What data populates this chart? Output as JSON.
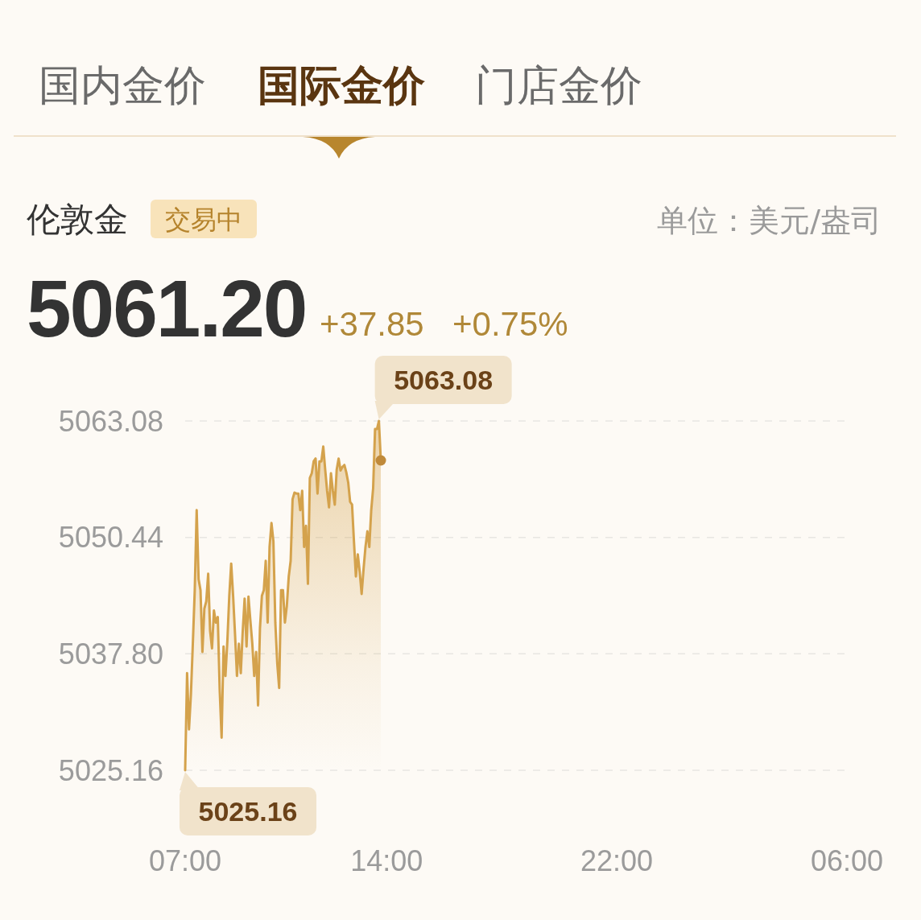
{
  "chart_data": {
    "type": "area",
    "title": "伦敦金",
    "annotations": [
      "国内金价",
      "国际金价",
      "门店金价",
      "交易中",
      "单位：美元/盎司",
      "5061.20",
      "+37.85",
      "+0.75%"
    ],
    "categories": [
      "07:00",
      null,
      null,
      null,
      null,
      null,
      null,
      null,
      null,
      null,
      null,
      null,
      null,
      null,
      null,
      null,
      null,
      null,
      null,
      null,
      null,
      null,
      null,
      null,
      null,
      null,
      null,
      null,
      null,
      null,
      null,
      null,
      null,
      null,
      null,
      null,
      null,
      null,
      null,
      null,
      null,
      null,
      null,
      null,
      null,
      null,
      null,
      null,
      null,
      null,
      null,
      null,
      null,
      null,
      null,
      null,
      null,
      null,
      null,
      null,
      null,
      null,
      null,
      null,
      null,
      null,
      null,
      null,
      null,
      null,
      null,
      null,
      null,
      null,
      null,
      null,
      null,
      null,
      null,
      null,
      null,
      null,
      null,
      null,
      null,
      null,
      null,
      null,
      null,
      null,
      null,
      null,
      null,
      null,
      null,
      null,
      null,
      null,
      null,
      null,
      null,
      null,
      null,
      null,
      null,
      "14:00",
      null,
      null,
      null,
      null,
      null,
      null,
      null,
      null,
      null,
      null,
      null,
      null,
      null,
      null,
      null,
      null,
      null,
      null,
      null,
      null,
      null,
      null,
      null,
      null,
      null,
      null,
      null,
      null,
      null,
      null,
      null,
      null,
      null,
      null,
      null,
      null,
      null,
      null,
      null,
      null,
      null,
      null,
      null,
      null,
      null,
      null,
      null,
      null,
      null,
      null,
      null,
      null,
      null,
      null,
      null,
      null,
      null,
      null,
      null,
      null,
      null,
      null,
      null,
      null,
      null,
      null,
      null,
      null,
      null,
      null,
      null,
      null,
      null,
      null,
      null,
      null,
      null,
      null,
      null,
      null,
      null,
      null,
      null,
      null,
      null,
      null,
      null,
      null,
      null,
      null,
      null,
      null,
      null,
      null,
      null,
      null,
      null,
      null,
      null,
      null,
      null,
      null,
      null,
      null,
      null,
      null,
      null,
      null,
      null,
      null,
      null,
      null,
      null,
      null,
      null,
      null,
      null,
      null,
      null,
      "22:00",
      null,
      null,
      null,
      null,
      null,
      null,
      null,
      null,
      null,
      null,
      null,
      null,
      null,
      null,
      null,
      null,
      null,
      null,
      null,
      null,
      null,
      null,
      null,
      null,
      null,
      null,
      null,
      null,
      null,
      null,
      null,
      null,
      null,
      null,
      null,
      null,
      null,
      null,
      null,
      null,
      null,
      null,
      null,
      null,
      null,
      null,
      null,
      null,
      null,
      null,
      null,
      null,
      null,
      null,
      null,
      null,
      null,
      null,
      null,
      null,
      null,
      null,
      null,
      null,
      null,
      null,
      null,
      null,
      null,
      null,
      null,
      null,
      null,
      null,
      null,
      null,
      null,
      null,
      null,
      null,
      null,
      null,
      null,
      null,
      null,
      null,
      null,
      null,
      null,
      null,
      null,
      null,
      null,
      null,
      null,
      null,
      null,
      null,
      null,
      null,
      null,
      null,
      null,
      null,
      null,
      null,
      null,
      null,
      null,
      null,
      null,
      null,
      null,
      null,
      null,
      null,
      null,
      null,
      null,
      "06:00"
    ],
    "series": [
      {
        "color": "#d4a24c",
        "values": [
          5025.16,
          5035.7,
          5029.6,
          5033.4,
          5038.9,
          5044.7,
          5053.4,
          5045.9,
          5044.7,
          5038.0,
          5042.7,
          5043.5,
          5046.5,
          5040.3,
          5038.4,
          5042.5,
          5041.2,
          5041.8,
          5033.9,
          5028.7,
          5038.6,
          5035.4,
          5039.2,
          5044.1,
          5047.6,
          5044.1,
          5039.9,
          5035.4,
          5038.9,
          5035.7,
          5040.2,
          5043.8,
          5038.6,
          5044.0,
          5041.4,
          5038.9,
          5035.4,
          5038.0,
          5032.2,
          5040.6,
          5044.1,
          5044.7,
          5047.9,
          5041.2,
          5049.4,
          5052.0,
          5050.0,
          5041.2,
          5036.8,
          5034.1,
          5044.7,
          5044.7,
          5041.2,
          5043.0,
          5046.2,
          5047.9,
          5054.6,
          5055.3,
          5055.2,
          5055.2,
          5053.4,
          5055.5,
          5049.4,
          5051.7,
          5045.4,
          5056.9,
          5057.4,
          5058.7,
          5059.0,
          5055.2,
          5058.7,
          5058.7,
          5060.3,
          5057.8,
          5055.5,
          5053.7,
          5057.4,
          5055.5,
          5054.0,
          5057.8,
          5059.0,
          5057.7,
          5058.1,
          5058.3,
          5057.5,
          5056.4,
          5054.3,
          5054.0,
          5050.0,
          5046.2,
          5048.6,
          5046.7,
          5044.3,
          5047.0,
          5049.4,
          5051.1,
          5049.4,
          5053.4,
          5055.8,
          5062.2,
          5062.2,
          5063.08,
          5058.8,
          null,
          null,
          null,
          null,
          null,
          null,
          null,
          null,
          null,
          null,
          null,
          null,
          null,
          null,
          null,
          null,
          null,
          null,
          null,
          null,
          null,
          null,
          null,
          null,
          null,
          null,
          null,
          null,
          null,
          null,
          null,
          null,
          null,
          null,
          null,
          null,
          null,
          null,
          null,
          null,
          null,
          null,
          null,
          null,
          null,
          null,
          null,
          null,
          null,
          null,
          null,
          null,
          null,
          null,
          null,
          null,
          null,
          null,
          null,
          null,
          null,
          null,
          null,
          null,
          null,
          null,
          null,
          null,
          null,
          null,
          null,
          null,
          null,
          null,
          null,
          null,
          null,
          null,
          null,
          null,
          null,
          null,
          null,
          null,
          null,
          null,
          null,
          null,
          null,
          null,
          null,
          null,
          null,
          null,
          null,
          null,
          null,
          null,
          null,
          null,
          null,
          null,
          null,
          null,
          null,
          null,
          null,
          null,
          null,
          null,
          null,
          null,
          null,
          null,
          null,
          null,
          null,
          null,
          null,
          null,
          null,
          null,
          null,
          null,
          null,
          null,
          null,
          null,
          null,
          null,
          null,
          null,
          null,
          null,
          null,
          null,
          null,
          null,
          null,
          null,
          null,
          null,
          null,
          null,
          null,
          null,
          null,
          null,
          null,
          null,
          null,
          null,
          null,
          null,
          null,
          null,
          null,
          null,
          null,
          null,
          null,
          null,
          null,
          null,
          null,
          null,
          null,
          null,
          null,
          null,
          null,
          null,
          null,
          null,
          null,
          null,
          null,
          null,
          null,
          null,
          null,
          null,
          null,
          null,
          null,
          null,
          null,
          null,
          null,
          null,
          null,
          null,
          null,
          null,
          null,
          null,
          null,
          null,
          null,
          null,
          null,
          null,
          null,
          null,
          null,
          null,
          null,
          null,
          null,
          null,
          null,
          null,
          null,
          null,
          null,
          null,
          null,
          null,
          null,
          null,
          null,
          null,
          null,
          null,
          null,
          null,
          null,
          null,
          null,
          null,
          null,
          null,
          null,
          null,
          null,
          null,
          null,
          null,
          null,
          null,
          null,
          null,
          null
        ],
        "value_labels": [
          "5025.16",
          null,
          null,
          null,
          null,
          null,
          null,
          null,
          null,
          null,
          null,
          null,
          null,
          null,
          null,
          null,
          null,
          null,
          null,
          null,
          null,
          null,
          null,
          null,
          null,
          null,
          null,
          null,
          null,
          null,
          null,
          null,
          null,
          null,
          null,
          null,
          null,
          null,
          null,
          null,
          null,
          null,
          null,
          null,
          null,
          null,
          null,
          null,
          null,
          null,
          null,
          null,
          null,
          null,
          null,
          null,
          null,
          null,
          null,
          null,
          null,
          null,
          null,
          null,
          null,
          null,
          null,
          null,
          null,
          null,
          null,
          null,
          null,
          null,
          null,
          null,
          null,
          null,
          null,
          null,
          null,
          null,
          null,
          null,
          null,
          null,
          null,
          null,
          null,
          null,
          null,
          null,
          null,
          null,
          null,
          null,
          null,
          null,
          null,
          null,
          null,
          "5063.08",
          null,
          null,
          null,
          null,
          null,
          null,
          null,
          null,
          null,
          null,
          null,
          null,
          null,
          null,
          null,
          null,
          null,
          null,
          null,
          null,
          null,
          null,
          null,
          null,
          null,
          null,
          null,
          null,
          null,
          null,
          null,
          null,
          null,
          null,
          null,
          null,
          null,
          null,
          null,
          null,
          null,
          null,
          null,
          null,
          null,
          null,
          null,
          null,
          null,
          null,
          null,
          null,
          null,
          null,
          null,
          null,
          null,
          null,
          null,
          null,
          null,
          null,
          null,
          null,
          null,
          null,
          null,
          null,
          null,
          null,
          null,
          null,
          null,
          null,
          null,
          null,
          null,
          null,
          null,
          null,
          null,
          null,
          null,
          null,
          null,
          null,
          null,
          null,
          null,
          null,
          null,
          null,
          null,
          null,
          null,
          null,
          null,
          null,
          null,
          null,
          null,
          null,
          null,
          null,
          null,
          null,
          null,
          null,
          null,
          null,
          null,
          null,
          null,
          null,
          null,
          null,
          null,
          null,
          null,
          null,
          null,
          null,
          null,
          null,
          null,
          null,
          null,
          null,
          null,
          null,
          null,
          null,
          null,
          null,
          null,
          null,
          null,
          null,
          null,
          null,
          null,
          null,
          null,
          null,
          null,
          null,
          null,
          null,
          null,
          null,
          null,
          null,
          null,
          null,
          null,
          null,
          null,
          null,
          null,
          null,
          null,
          null,
          null,
          null,
          null,
          null,
          null,
          null,
          null,
          null,
          null,
          null,
          null,
          null,
          null,
          null,
          null,
          null,
          null,
          null,
          null,
          null,
          null,
          null,
          null,
          null,
          null,
          null,
          null,
          null,
          null,
          null,
          null,
          null,
          null,
          null,
          null,
          null,
          null,
          null,
          null,
          null,
          null,
          null,
          null,
          null,
          null,
          null,
          null,
          null,
          null,
          null,
          null,
          null,
          null,
          null,
          null,
          null,
          null,
          null,
          null,
          null,
          null,
          null,
          null,
          null,
          null,
          null,
          null,
          null,
          null,
          null,
          null,
          null,
          null,
          null,
          null,
          null,
          null,
          null,
          null,
          null,
          null,
          null
        ]
      },
      {
        "type": "scatter",
        "color": "#c08a3a",
        "marker": "circle",
        "values": [
          null,
          null,
          null,
          null,
          null,
          null,
          null,
          null,
          null,
          null,
          null,
          null,
          null,
          null,
          null,
          null,
          null,
          null,
          null,
          null,
          null,
          null,
          null,
          null,
          null,
          null,
          null,
          null,
          null,
          null,
          null,
          null,
          null,
          null,
          null,
          null,
          null,
          null,
          null,
          null,
          null,
          null,
          null,
          null,
          null,
          null,
          null,
          null,
          null,
          null,
          null,
          null,
          null,
          null,
          null,
          null,
          null,
          null,
          null,
          null,
          null,
          null,
          null,
          null,
          null,
          null,
          null,
          null,
          null,
          null,
          null,
          null,
          null,
          null,
          null,
          null,
          null,
          null,
          null,
          null,
          null,
          null,
          null,
          null,
          null,
          null,
          null,
          null,
          null,
          null,
          null,
          null,
          null,
          null,
          null,
          null,
          null,
          null,
          null,
          null,
          null,
          null,
          5058.8,
          null,
          null,
          null,
          null,
          null,
          null,
          null,
          null,
          null,
          null,
          null,
          null,
          null,
          null,
          null,
          null,
          null,
          null,
          null,
          null,
          null,
          null,
          null,
          null,
          null,
          null,
          null,
          null,
          null,
          null,
          null,
          null,
          null,
          null,
          null,
          null,
          null,
          null,
          null,
          null,
          null,
          null,
          null,
          null,
          null,
          null,
          null,
          null,
          null,
          null,
          null,
          null,
          null,
          null,
          null,
          null,
          null,
          null,
          null,
          null,
          null,
          null,
          null,
          null,
          null,
          null,
          null,
          null,
          null,
          null,
          null,
          null,
          null,
          null,
          null,
          null,
          null,
          null,
          null,
          null,
          null,
          null,
          null,
          null,
          null,
          null,
          null,
          null,
          null,
          null,
          null,
          null,
          null,
          null,
          null,
          null,
          null,
          null,
          null,
          null,
          null,
          null,
          null,
          null,
          null,
          null,
          null,
          null,
          null,
          null,
          null,
          null,
          null,
          null,
          null,
          null,
          null,
          null,
          null,
          null,
          null,
          null,
          null,
          null,
          null,
          null,
          null,
          null,
          null,
          null,
          null,
          null,
          null,
          null,
          null,
          null,
          null,
          null,
          null,
          null,
          null,
          null,
          null,
          null,
          null,
          null,
          null,
          null,
          null,
          null,
          null,
          null,
          null,
          null,
          null,
          null,
          null,
          null,
          null,
          null,
          null,
          null,
          null,
          null,
          null,
          null,
          null,
          null,
          null,
          null,
          null,
          null,
          null,
          null,
          null,
          null,
          null,
          null,
          null,
          null,
          null,
          null,
          null,
          null,
          null,
          null,
          null,
          null,
          null,
          null,
          null,
          null,
          null,
          null,
          null,
          null,
          null,
          null,
          null,
          null,
          null,
          null,
          null,
          null,
          null,
          null,
          null,
          null,
          null,
          null,
          null,
          null,
          null,
          null,
          null,
          null,
          null,
          null,
          null,
          null,
          null,
          null,
          null,
          null,
          null,
          null,
          null,
          null,
          null,
          null,
          null,
          null,
          null,
          null,
          null,
          null,
          null,
          null,
          null,
          null,
          null,
          null,
          null
        ]
      }
    ],
    "ylim": [
      5025.16,
      5063.08
    ],
    "yticks": [
      5025.16,
      {
        "value": 5037.8,
        "label": "5037.80"
      },
      5050.44,
      5063.08
    ],
    "grid": "y"
  }
}
